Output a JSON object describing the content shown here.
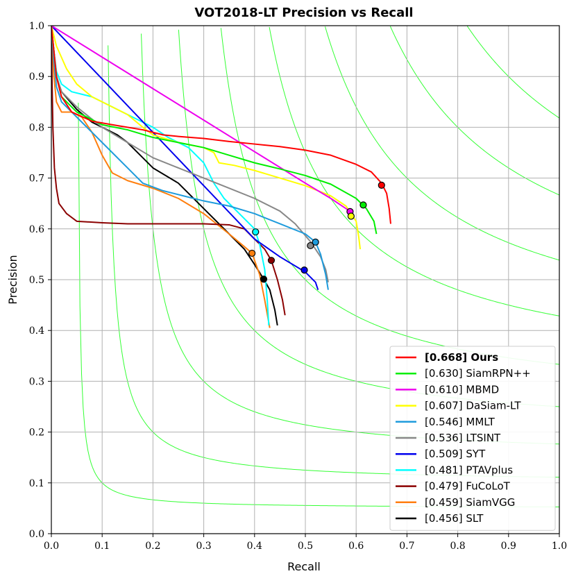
{
  "chart_data": {
    "type": "line",
    "title": "VOT2018-LT Precision vs Recall",
    "xlabel": "Recall",
    "ylabel": "Precision",
    "xlim": [
      0,
      1
    ],
    "ylim": [
      0,
      1
    ],
    "grid": true,
    "legend_position": "bottom-right",
    "x_ticks": [
      "0.0",
      "0.1",
      "0.2",
      "0.3",
      "0.4",
      "0.5",
      "0.6",
      "0.7",
      "0.8",
      "0.9",
      "1.0"
    ],
    "y_ticks": [
      "0.0",
      "0.1",
      "0.2",
      "0.3",
      "0.4",
      "0.5",
      "0.6",
      "0.7",
      "0.8",
      "0.9",
      "1.0"
    ],
    "iso_f_levels": [
      0.1,
      0.2,
      0.3,
      0.4,
      0.5,
      0.6,
      0.7,
      0.8,
      0.9
    ],
    "iso_f_color": "#33ff33",
    "series": [
      {
        "name": "Ours",
        "score": "[0.668]",
        "bold": true,
        "color": "#ff0000",
        "marker": [
          0.65,
          0.686
        ],
        "points": [
          [
            0.0,
            1.0
          ],
          [
            0.005,
            0.95
          ],
          [
            0.01,
            0.9
          ],
          [
            0.02,
            0.86
          ],
          [
            0.04,
            0.83
          ],
          [
            0.08,
            0.812
          ],
          [
            0.12,
            0.805
          ],
          [
            0.18,
            0.795
          ],
          [
            0.22,
            0.785
          ],
          [
            0.25,
            0.782
          ],
          [
            0.3,
            0.778
          ],
          [
            0.35,
            0.772
          ],
          [
            0.4,
            0.767
          ],
          [
            0.45,
            0.762
          ],
          [
            0.5,
            0.755
          ],
          [
            0.55,
            0.745
          ],
          [
            0.6,
            0.727
          ],
          [
            0.63,
            0.712
          ],
          [
            0.65,
            0.69
          ],
          [
            0.66,
            0.67
          ],
          [
            0.665,
            0.64
          ],
          [
            0.668,
            0.61
          ]
        ]
      },
      {
        "name": "SiamRPN++",
        "score": "[0.630]",
        "bold": false,
        "color": "#00ee00",
        "marker": [
          0.614,
          0.647
        ],
        "points": [
          [
            0.0,
            1.0
          ],
          [
            0.005,
            0.95
          ],
          [
            0.01,
            0.9
          ],
          [
            0.02,
            0.86
          ],
          [
            0.05,
            0.83
          ],
          [
            0.1,
            0.805
          ],
          [
            0.15,
            0.795
          ],
          [
            0.2,
            0.78
          ],
          [
            0.25,
            0.77
          ],
          [
            0.3,
            0.76
          ],
          [
            0.35,
            0.745
          ],
          [
            0.4,
            0.73
          ],
          [
            0.45,
            0.718
          ],
          [
            0.5,
            0.705
          ],
          [
            0.55,
            0.688
          ],
          [
            0.6,
            0.66
          ],
          [
            0.62,
            0.64
          ],
          [
            0.635,
            0.615
          ],
          [
            0.64,
            0.59
          ]
        ]
      },
      {
        "name": "MBMD",
        "score": "[0.610]",
        "bold": false,
        "color": "#ee00ee",
        "marker": [
          0.588,
          0.634
        ],
        "points": [
          [
            0.0,
            1.0
          ],
          [
            0.1,
            0.938
          ],
          [
            0.2,
            0.876
          ],
          [
            0.3,
            0.814
          ],
          [
            0.4,
            0.752
          ],
          [
            0.5,
            0.69
          ],
          [
            0.55,
            0.66
          ],
          [
            0.58,
            0.64
          ],
          [
            0.59,
            0.632
          ]
        ]
      },
      {
        "name": "DaSiam-LT",
        "score": "[0.607]",
        "bold": false,
        "color": "#ffff00",
        "marker": [
          0.59,
          0.625
        ],
        "points": [
          [
            0.0,
            1.0
          ],
          [
            0.01,
            0.96
          ],
          [
            0.03,
            0.915
          ],
          [
            0.05,
            0.885
          ],
          [
            0.08,
            0.86
          ],
          [
            0.12,
            0.84
          ],
          [
            0.15,
            0.825
          ],
          [
            0.18,
            0.8
          ],
          [
            0.2,
            0.785
          ],
          [
            0.25,
            0.77
          ],
          [
            0.3,
            0.76
          ],
          [
            0.32,
            0.75
          ],
          [
            0.33,
            0.73
          ],
          [
            0.36,
            0.725
          ],
          [
            0.4,
            0.715
          ],
          [
            0.45,
            0.7
          ],
          [
            0.5,
            0.685
          ],
          [
            0.55,
            0.665
          ],
          [
            0.58,
            0.645
          ],
          [
            0.6,
            0.615
          ],
          [
            0.605,
            0.585
          ],
          [
            0.608,
            0.56
          ]
        ]
      },
      {
        "name": "MMLT",
        "score": "[0.546]",
        "bold": false,
        "color": "#1e9bdc",
        "marker": [
          0.52,
          0.574
        ],
        "points": [
          [
            0.0,
            1.0
          ],
          [
            0.005,
            0.93
          ],
          [
            0.01,
            0.88
          ],
          [
            0.02,
            0.85
          ],
          [
            0.05,
            0.82
          ],
          [
            0.08,
            0.79
          ],
          [
            0.1,
            0.77
          ],
          [
            0.12,
            0.75
          ],
          [
            0.15,
            0.72
          ],
          [
            0.18,
            0.69
          ],
          [
            0.22,
            0.675
          ],
          [
            0.26,
            0.665
          ],
          [
            0.3,
            0.655
          ],
          [
            0.35,
            0.645
          ],
          [
            0.4,
            0.63
          ],
          [
            0.45,
            0.61
          ],
          [
            0.5,
            0.59
          ],
          [
            0.52,
            0.574
          ],
          [
            0.53,
            0.55
          ],
          [
            0.54,
            0.51
          ],
          [
            0.545,
            0.48
          ]
        ]
      },
      {
        "name": "LTSINT",
        "score": "[0.536]",
        "bold": false,
        "color": "#888888",
        "marker": [
          0.51,
          0.567
        ],
        "points": [
          [
            0.0,
            1.0
          ],
          [
            0.005,
            0.95
          ],
          [
            0.01,
            0.9
          ],
          [
            0.02,
            0.87
          ],
          [
            0.05,
            0.84
          ],
          [
            0.1,
            0.8
          ],
          [
            0.15,
            0.77
          ],
          [
            0.2,
            0.74
          ],
          [
            0.25,
            0.72
          ],
          [
            0.3,
            0.7
          ],
          [
            0.35,
            0.68
          ],
          [
            0.4,
            0.66
          ],
          [
            0.45,
            0.635
          ],
          [
            0.48,
            0.61
          ],
          [
            0.51,
            0.575
          ],
          [
            0.53,
            0.545
          ],
          [
            0.54,
            0.52
          ],
          [
            0.545,
            0.495
          ]
        ]
      },
      {
        "name": "SYT",
        "score": "[0.509]",
        "bold": false,
        "color": "#0000ee",
        "marker": [
          0.498,
          0.519
        ],
        "points": [
          [
            0.0,
            1.0
          ],
          [
            0.1,
            0.895
          ],
          [
            0.2,
            0.79
          ],
          [
            0.3,
            0.685
          ],
          [
            0.4,
            0.58
          ],
          [
            0.45,
            0.545
          ],
          [
            0.5,
            0.515
          ],
          [
            0.52,
            0.495
          ],
          [
            0.525,
            0.48
          ]
        ]
      },
      {
        "name": "PTAVplus",
        "score": "[0.481]",
        "bold": false,
        "color": "#00ffff",
        "marker": [
          0.402,
          0.594
        ],
        "points": [
          [
            0.0,
            1.0
          ],
          [
            0.005,
            0.95
          ],
          [
            0.01,
            0.91
          ],
          [
            0.02,
            0.885
          ],
          [
            0.04,
            0.87
          ],
          [
            0.08,
            0.86
          ],
          [
            0.12,
            0.84
          ],
          [
            0.16,
            0.82
          ],
          [
            0.2,
            0.8
          ],
          [
            0.23,
            0.78
          ],
          [
            0.27,
            0.76
          ],
          [
            0.3,
            0.73
          ],
          [
            0.32,
            0.69
          ],
          [
            0.34,
            0.66
          ],
          [
            0.37,
            0.63
          ],
          [
            0.4,
            0.6
          ],
          [
            0.41,
            0.57
          ],
          [
            0.42,
            0.52
          ],
          [
            0.425,
            0.46
          ],
          [
            0.428,
            0.41
          ]
        ]
      },
      {
        "name": "FuCoLoT",
        "score": "[0.479]",
        "bold": false,
        "color": "#8b0000",
        "marker": [
          0.433,
          0.538
        ],
        "points": [
          [
            0.0,
            0.97
          ],
          [
            0.003,
            0.8
          ],
          [
            0.006,
            0.72
          ],
          [
            0.01,
            0.68
          ],
          [
            0.015,
            0.65
          ],
          [
            0.03,
            0.63
          ],
          [
            0.05,
            0.615
          ],
          [
            0.1,
            0.612
          ],
          [
            0.15,
            0.61
          ],
          [
            0.2,
            0.61
          ],
          [
            0.25,
            0.61
          ],
          [
            0.3,
            0.61
          ],
          [
            0.35,
            0.608
          ],
          [
            0.38,
            0.6
          ],
          [
            0.4,
            0.58
          ],
          [
            0.42,
            0.56
          ],
          [
            0.433,
            0.538
          ],
          [
            0.445,
            0.5
          ],
          [
            0.455,
            0.46
          ],
          [
            0.46,
            0.43
          ]
        ]
      },
      {
        "name": "SiamVGG",
        "score": "[0.459]",
        "bold": false,
        "color": "#ff7f0e",
        "marker": [
          0.395,
          0.552
        ],
        "points": [
          [
            0.0,
            0.98
          ],
          [
            0.005,
            0.9
          ],
          [
            0.01,
            0.85
          ],
          [
            0.02,
            0.83
          ],
          [
            0.04,
            0.83
          ],
          [
            0.06,
            0.82
          ],
          [
            0.08,
            0.79
          ],
          [
            0.1,
            0.745
          ],
          [
            0.12,
            0.71
          ],
          [
            0.15,
            0.695
          ],
          [
            0.2,
            0.68
          ],
          [
            0.25,
            0.66
          ],
          [
            0.3,
            0.63
          ],
          [
            0.35,
            0.59
          ],
          [
            0.38,
            0.565
          ],
          [
            0.395,
            0.552
          ],
          [
            0.41,
            0.51
          ],
          [
            0.42,
            0.46
          ],
          [
            0.43,
            0.405
          ]
        ]
      },
      {
        "name": "SLT",
        "score": "[0.456]",
        "bold": false,
        "color": "#000000",
        "marker": [
          0.418,
          0.501
        ],
        "points": [
          [
            0.0,
            1.0
          ],
          [
            0.005,
            0.95
          ],
          [
            0.01,
            0.9
          ],
          [
            0.02,
            0.87
          ],
          [
            0.05,
            0.835
          ],
          [
            0.08,
            0.81
          ],
          [
            0.1,
            0.8
          ],
          [
            0.13,
            0.785
          ],
          [
            0.15,
            0.77
          ],
          [
            0.18,
            0.74
          ],
          [
            0.2,
            0.72
          ],
          [
            0.25,
            0.69
          ],
          [
            0.3,
            0.64
          ],
          [
            0.35,
            0.59
          ],
          [
            0.38,
            0.56
          ],
          [
            0.4,
            0.53
          ],
          [
            0.418,
            0.501
          ],
          [
            0.43,
            0.48
          ],
          [
            0.44,
            0.44
          ],
          [
            0.445,
            0.41
          ]
        ]
      }
    ]
  }
}
